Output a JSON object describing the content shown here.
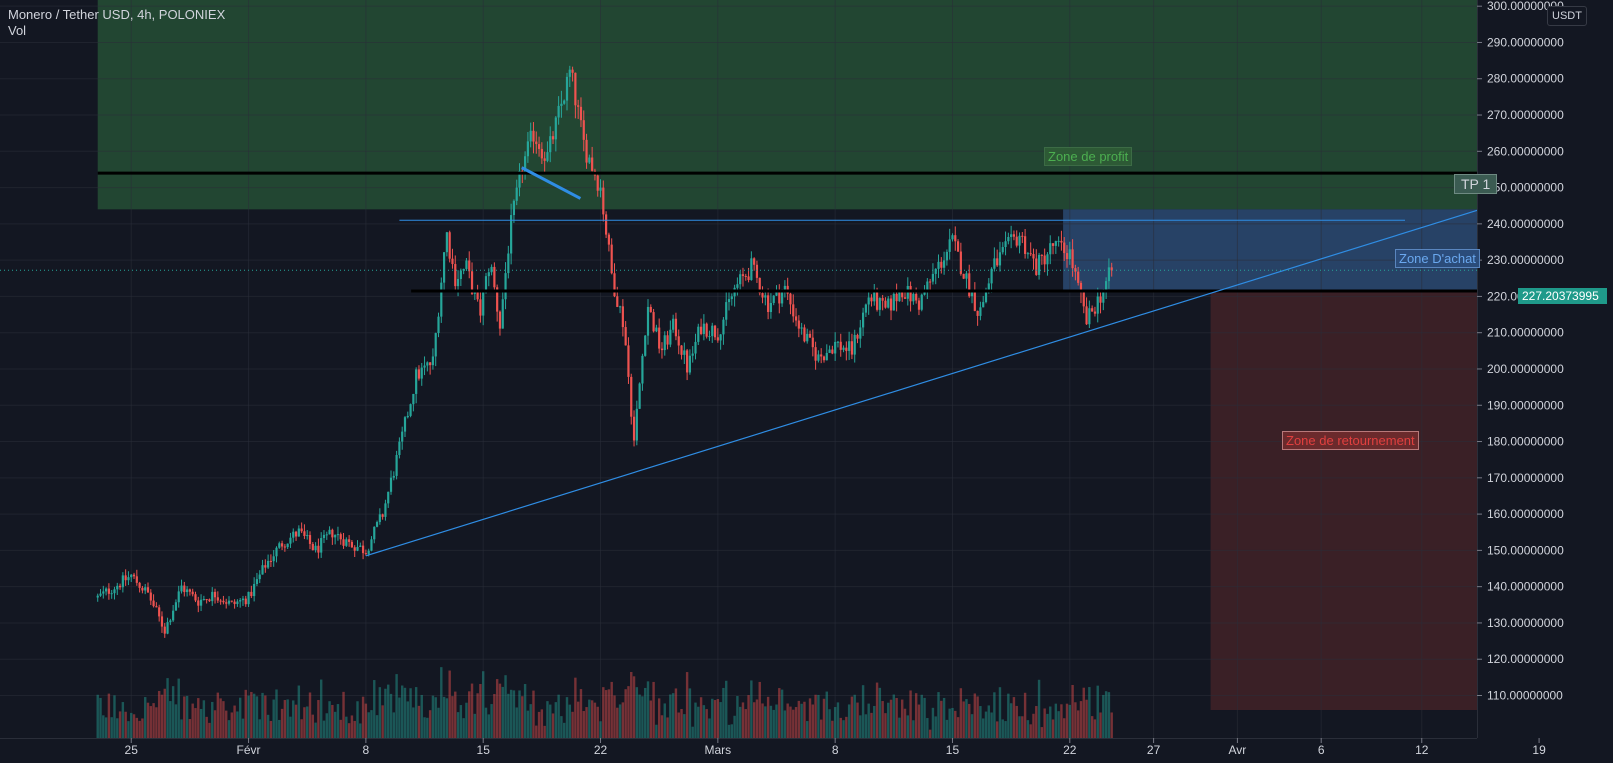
{
  "header": {
    "symbol_line": "Monero / Tether USD, 4h, POLONIEX",
    "indicator": "Vol"
  },
  "price_axis": {
    "unit": "USDT",
    "current_price": "227.20373995",
    "ticks": [
      {
        "value": 110,
        "label": "110.00000000"
      },
      {
        "value": 120,
        "label": "120.00000000"
      },
      {
        "value": 130,
        "label": "130.00000000"
      },
      {
        "value": 140,
        "label": "140.00000000"
      },
      {
        "value": 150,
        "label": "150.00000000"
      },
      {
        "value": 160,
        "label": "160.00000000"
      },
      {
        "value": 170,
        "label": "170.00000000"
      },
      {
        "value": 180,
        "label": "180.00000000"
      },
      {
        "value": 190,
        "label": "190.00000000"
      },
      {
        "value": 200,
        "label": "200.00000000"
      },
      {
        "value": 210,
        "label": "210.00000000"
      },
      {
        "value": 220,
        "label": "220.00000000"
      },
      {
        "value": 230,
        "label": "230.00000000"
      },
      {
        "value": 240,
        "label": "240.00000000"
      },
      {
        "value": 250,
        "label": "250.00000000"
      },
      {
        "value": 260,
        "label": "260.00000000"
      },
      {
        "value": 270,
        "label": "270.00000000"
      },
      {
        "value": 280,
        "label": "280.00000000"
      },
      {
        "value": 290,
        "label": "290.00000000"
      },
      {
        "value": 300,
        "label": "300.00000000"
      }
    ]
  },
  "time_axis": {
    "ticks": [
      {
        "day": -1,
        "label": "25"
      },
      {
        "day": 6,
        "label": "Févr"
      },
      {
        "day": 13,
        "label": "8"
      },
      {
        "day": 20,
        "label": "15"
      },
      {
        "day": 27,
        "label": "22"
      },
      {
        "day": 34,
        "label": "Mars"
      },
      {
        "day": 41,
        "label": "8"
      },
      {
        "day": 48,
        "label": "15"
      },
      {
        "day": 55,
        "label": "22"
      },
      {
        "day": 60,
        "label": "27"
      },
      {
        "day": 65,
        "label": "Avr"
      },
      {
        "day": 70,
        "label": "6"
      },
      {
        "day": 76,
        "label": "12"
      },
      {
        "day": 83,
        "label": "19"
      }
    ]
  },
  "annotations": {
    "zone_profit": "Zone de profit",
    "zone_achat": "Zone D'achat",
    "zone_retournement": "Zone de retournement",
    "tp1": "TP 1"
  },
  "colors": {
    "background": "#131722",
    "up": "#26a69a",
    "down": "#ef5350",
    "profit_zone": "#224632",
    "buy_zone": "#2c4a72",
    "reversal_zone": "#3a2026",
    "trendline": "#2f8de4",
    "level_line": "#000000"
  },
  "chart_data": {
    "type": "candlestick",
    "title": "Monero / Tether USD, 4h, POLONIEX",
    "x_unit": "day (0 = Feb 1)",
    "ylim": [
      107,
      305
    ],
    "xlim": [
      -3,
      86
    ],
    "path_keypoints": [
      {
        "x": -3,
        "y": 137
      },
      {
        "x": -2,
        "y": 140
      },
      {
        "x": -1,
        "y": 143
      },
      {
        "x": 0,
        "y": 138
      },
      {
        "x": 1,
        "y": 128
      },
      {
        "x": 2,
        "y": 140
      },
      {
        "x": 3,
        "y": 136
      },
      {
        "x": 4,
        "y": 138
      },
      {
        "x": 5,
        "y": 135
      },
      {
        "x": 6,
        "y": 137
      },
      {
        "x": 7,
        "y": 146
      },
      {
        "x": 8,
        "y": 152
      },
      {
        "x": 9,
        "y": 155
      },
      {
        "x": 10,
        "y": 150
      },
      {
        "x": 11,
        "y": 155
      },
      {
        "x": 12,
        "y": 152
      },
      {
        "x": 13,
        "y": 150
      },
      {
        "x": 14,
        "y": 160
      },
      {
        "x": 15,
        "y": 178
      },
      {
        "x": 16,
        "y": 198
      },
      {
        "x": 17,
        "y": 202
      },
      {
        "x": 17.8,
        "y": 238
      },
      {
        "x": 18.3,
        "y": 225
      },
      {
        "x": 19,
        "y": 228
      },
      {
        "x": 19.8,
        "y": 215
      },
      {
        "x": 20.4,
        "y": 230
      },
      {
        "x": 21,
        "y": 212
      },
      {
        "x": 21.6,
        "y": 238
      },
      {
        "x": 22.3,
        "y": 255
      },
      {
        "x": 23,
        "y": 265
      },
      {
        "x": 23.8,
        "y": 258
      },
      {
        "x": 24.5,
        "y": 270
      },
      {
        "x": 25.2,
        "y": 282
      },
      {
        "x": 26,
        "y": 262
      },
      {
        "x": 27,
        "y": 250
      },
      {
        "x": 27.7,
        "y": 225
      },
      {
        "x": 28.4,
        "y": 212
      },
      {
        "x": 29,
        "y": 180
      },
      {
        "x": 29.8,
        "y": 218
      },
      {
        "x": 30.6,
        "y": 205
      },
      {
        "x": 31.4,
        "y": 212
      },
      {
        "x": 32.2,
        "y": 200
      },
      {
        "x": 33,
        "y": 212
      },
      {
        "x": 34,
        "y": 210
      },
      {
        "x": 35,
        "y": 222
      },
      {
        "x": 36,
        "y": 228
      },
      {
        "x": 37,
        "y": 218
      },
      {
        "x": 38,
        "y": 222
      },
      {
        "x": 39,
        "y": 210
      },
      {
        "x": 40,
        "y": 203
      },
      {
        "x": 41,
        "y": 207
      },
      {
        "x": 42,
        "y": 205
      },
      {
        "x": 43,
        "y": 220
      },
      {
        "x": 44,
        "y": 216
      },
      {
        "x": 45,
        "y": 222
      },
      {
        "x": 46,
        "y": 218
      },
      {
        "x": 47,
        "y": 227
      },
      {
        "x": 48,
        "y": 235
      },
      {
        "x": 48.8,
        "y": 225
      },
      {
        "x": 49.6,
        "y": 215
      },
      {
        "x": 50.4,
        "y": 228
      },
      {
        "x": 51.2,
        "y": 233
      },
      {
        "x": 52,
        "y": 237
      },
      {
        "x": 53,
        "y": 228
      },
      {
        "x": 54,
        "y": 234
      },
      {
        "x": 55,
        "y": 232
      },
      {
        "x": 55.5,
        "y": 222
      },
      {
        "x": 56,
        "y": 213
      },
      {
        "x": 56.8,
        "y": 220
      },
      {
        "x": 57.5,
        "y": 227
      }
    ],
    "volume_range": [
      0,
      100
    ],
    "levels": [
      {
        "y": 254,
        "x_from": -3,
        "x_to": 86,
        "style": "black"
      },
      {
        "y": 221.5,
        "x_from": 15.7,
        "x_to": 80.7,
        "style": "black"
      },
      {
        "y": 241,
        "x_from": 15,
        "x_to": 75,
        "style": "blue"
      }
    ],
    "trendlines": [
      {
        "x1": 13,
        "y1": 148.5,
        "x2": 79.5,
        "y2": 244
      },
      {
        "x1": 22.3,
        "y1": 255.5,
        "x2": 25.8,
        "y2": 247
      }
    ],
    "zones": [
      {
        "name": "profit",
        "x_from": -3,
        "x_to": 86,
        "y_from": 244,
        "y_to": 304
      },
      {
        "name": "achat",
        "x_from": 54.6,
        "x_to": 86,
        "y_from": 221.5,
        "y_to": 244
      },
      {
        "name": "retournement",
        "x_from": 63.4,
        "x_to": 86,
        "y_from": 106,
        "y_to": 221.5
      }
    ]
  }
}
